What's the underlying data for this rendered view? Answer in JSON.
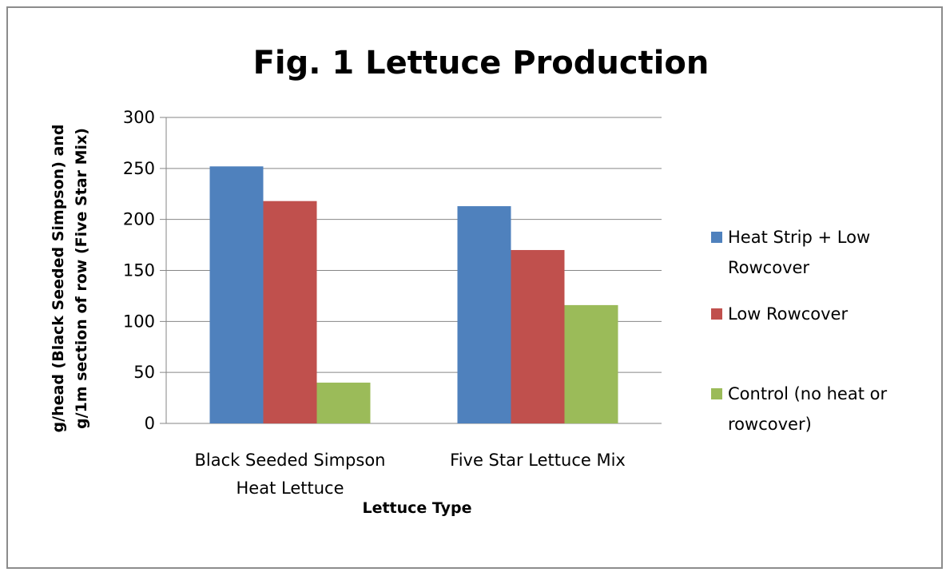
{
  "chart_data": {
    "type": "bar",
    "title": "Fig. 1   Lettuce Production",
    "xlabel": "Lettuce Type",
    "ylabel_lines": [
      "g/head (Black Seeded Simpson) and",
      "g/1m section of row (Five Star Mix)"
    ],
    "ylim": [
      0,
      300
    ],
    "yticks": [
      0,
      50,
      100,
      150,
      200,
      250,
      300
    ],
    "grid": true,
    "legend_position": "right",
    "categories": [
      {
        "lines": [
          "Black Seeded Simpson",
          "Heat Lettuce"
        ]
      },
      {
        "lines": [
          "Five Star Lettuce Mix"
        ]
      }
    ],
    "series": [
      {
        "name_lines": [
          "Heat Strip + Low",
          "Rowcover"
        ],
        "color": "#4f81bd",
        "values": [
          252,
          213
        ]
      },
      {
        "name_lines": [
          "Low Rowcover"
        ],
        "color": "#c0504d",
        "values": [
          218,
          170
        ]
      },
      {
        "name_lines": [
          "Control (no heat or",
          "rowcover)"
        ],
        "color": "#9bbb59",
        "values": [
          40,
          116
        ]
      }
    ]
  }
}
